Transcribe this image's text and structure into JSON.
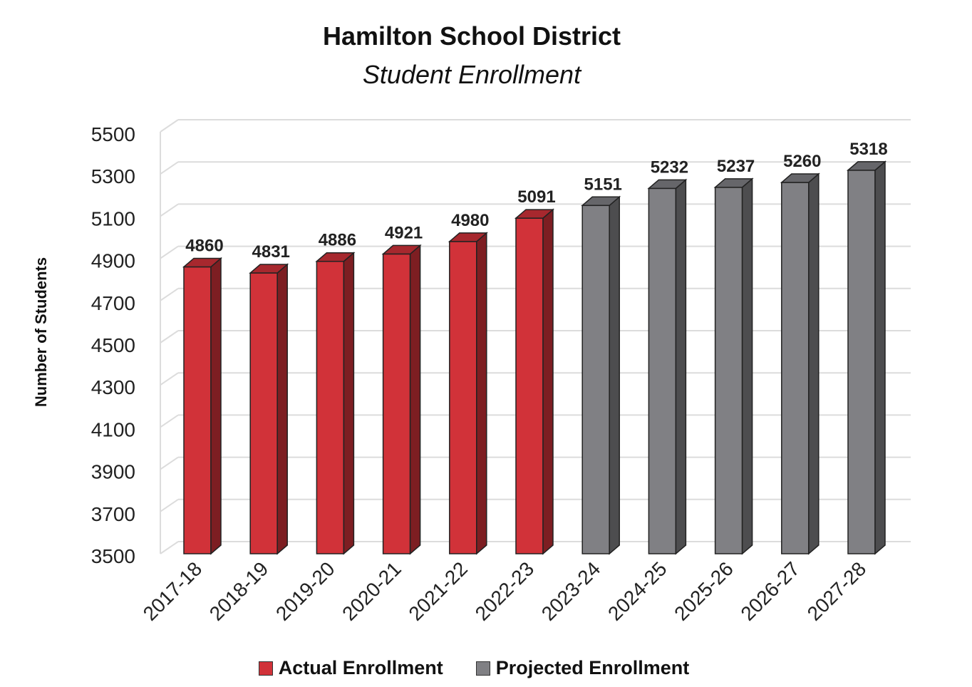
{
  "chart_data": {
    "type": "bar",
    "title": "Hamilton School District",
    "subtitle": "Student Enrollment",
    "ylabel": "Number of Students",
    "xlabel": "",
    "ylim": [
      3500,
      5500
    ],
    "yticks": [
      3500,
      3700,
      3900,
      4100,
      4300,
      4500,
      4700,
      4900,
      5100,
      5300,
      5500
    ],
    "grid": true,
    "legend_position": "bottom",
    "categories": [
      "2017-18",
      "2018-19",
      "2019-20",
      "2020-21",
      "2021-22",
      "2022-23",
      "2023-24",
      "2024-25",
      "2025-26",
      "2026-27",
      "2027-28"
    ],
    "series": [
      {
        "name": "Actual Enrollment",
        "color": "#d13239",
        "values": [
          4860,
          4831,
          4886,
          4921,
          4980,
          5091,
          null,
          null,
          null,
          null,
          null
        ]
      },
      {
        "name": "Projected Enrollment",
        "color": "#808084",
        "values": [
          null,
          null,
          null,
          null,
          null,
          null,
          5151,
          5232,
          5237,
          5260,
          5318
        ]
      }
    ]
  }
}
